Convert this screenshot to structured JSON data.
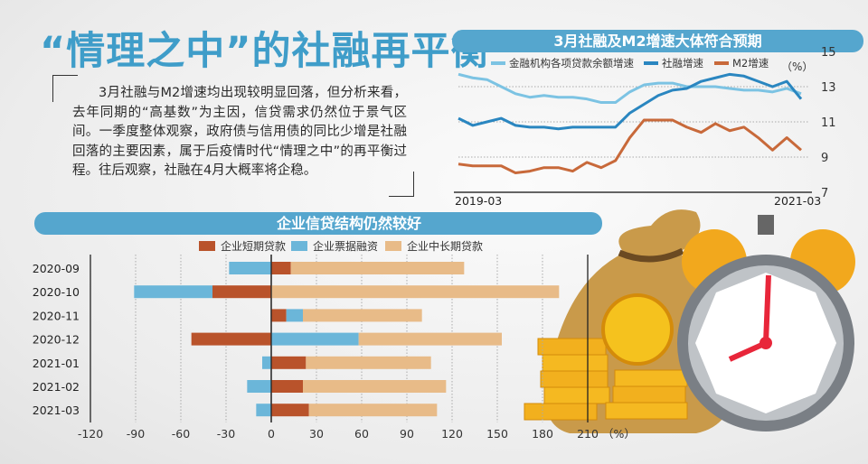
{
  "title": "“情理之中”的社融再平衡",
  "paragraph": "3月社融与M2增速均出现较明显回落，但分析来看，去年同期的“高基数”为主因，信贷需求仍然位于景气区间。一季度整体观察，政府债与信用债的同比少增是社融回落的主要因素，属于后疫情时代“情理之中”的再平衡过程。往后观察，社融在4月大概率将企稳。",
  "chart_data": [
    {
      "type": "line",
      "title": "3月社融及M2增速大体符合预期",
      "unit": "（%）",
      "x_start_label": "2019-03",
      "x_end_label": "2021-03",
      "ylim": [
        7,
        15
      ],
      "yticks": [
        "15",
        "13",
        "11",
        "9",
        "7"
      ],
      "grid": true,
      "legend_position": "top",
      "series": [
        {
          "name": "金融机构各项贷款余额增速",
          "color": "#7cc3e3",
          "values": [
            13.7,
            13.5,
            13.4,
            13.0,
            12.6,
            12.4,
            12.5,
            12.4,
            12.4,
            12.3,
            12.1,
            12.1,
            12.7,
            13.1,
            13.2,
            13.2,
            13.0,
            13.0,
            13.0,
            12.9,
            12.8,
            12.8,
            12.7,
            12.9,
            12.6
          ]
        },
        {
          "name": "社融增速",
          "color": "#2a86c0",
          "values": [
            11.2,
            10.8,
            11.0,
            11.2,
            10.8,
            10.7,
            10.7,
            10.6,
            10.7,
            10.7,
            10.7,
            10.7,
            11.5,
            12.0,
            12.5,
            12.8,
            12.9,
            13.3,
            13.5,
            13.7,
            13.6,
            13.3,
            13.0,
            13.3,
            12.3
          ]
        },
        {
          "name": "M2增速",
          "color": "#c8693a",
          "values": [
            8.6,
            8.5,
            8.5,
            8.5,
            8.1,
            8.2,
            8.4,
            8.4,
            8.2,
            8.7,
            8.4,
            8.8,
            10.1,
            11.1,
            11.1,
            11.1,
            10.7,
            10.4,
            10.9,
            10.5,
            10.7,
            10.1,
            9.4,
            10.1,
            9.4
          ]
        }
      ]
    },
    {
      "type": "bar",
      "orientation": "horizontal-stacked",
      "title": "企业信贷结构仍然较好",
      "unit": "（%）",
      "categories": [
        "2020-09",
        "2020-10",
        "2020-11",
        "2020-12",
        "2021-01",
        "2021-02",
        "2021-03"
      ],
      "xlim": [
        -120,
        210
      ],
      "xticks": [
        "-120",
        "-90",
        "-60",
        "-30",
        "0",
        "30",
        "60",
        "90",
        "120",
        "150",
        "180",
        "210"
      ],
      "grid": true,
      "legend_position": "top",
      "series": [
        {
          "name": "企业短期贷款",
          "color": "#b9532b",
          "values": [
            13,
            -39,
            10,
            -53,
            23,
            21,
            25
          ]
        },
        {
          "name": "企业票据融资",
          "color": "#6bb6d9",
          "values": [
            -28,
            -52,
            11,
            58,
            -6,
            -16,
            -10
          ]
        },
        {
          "name": "企业中长期贷款",
          "color": "#e8bb88",
          "values": [
            115,
            191,
            79,
            95,
            83,
            95,
            85
          ]
        }
      ]
    }
  ]
}
